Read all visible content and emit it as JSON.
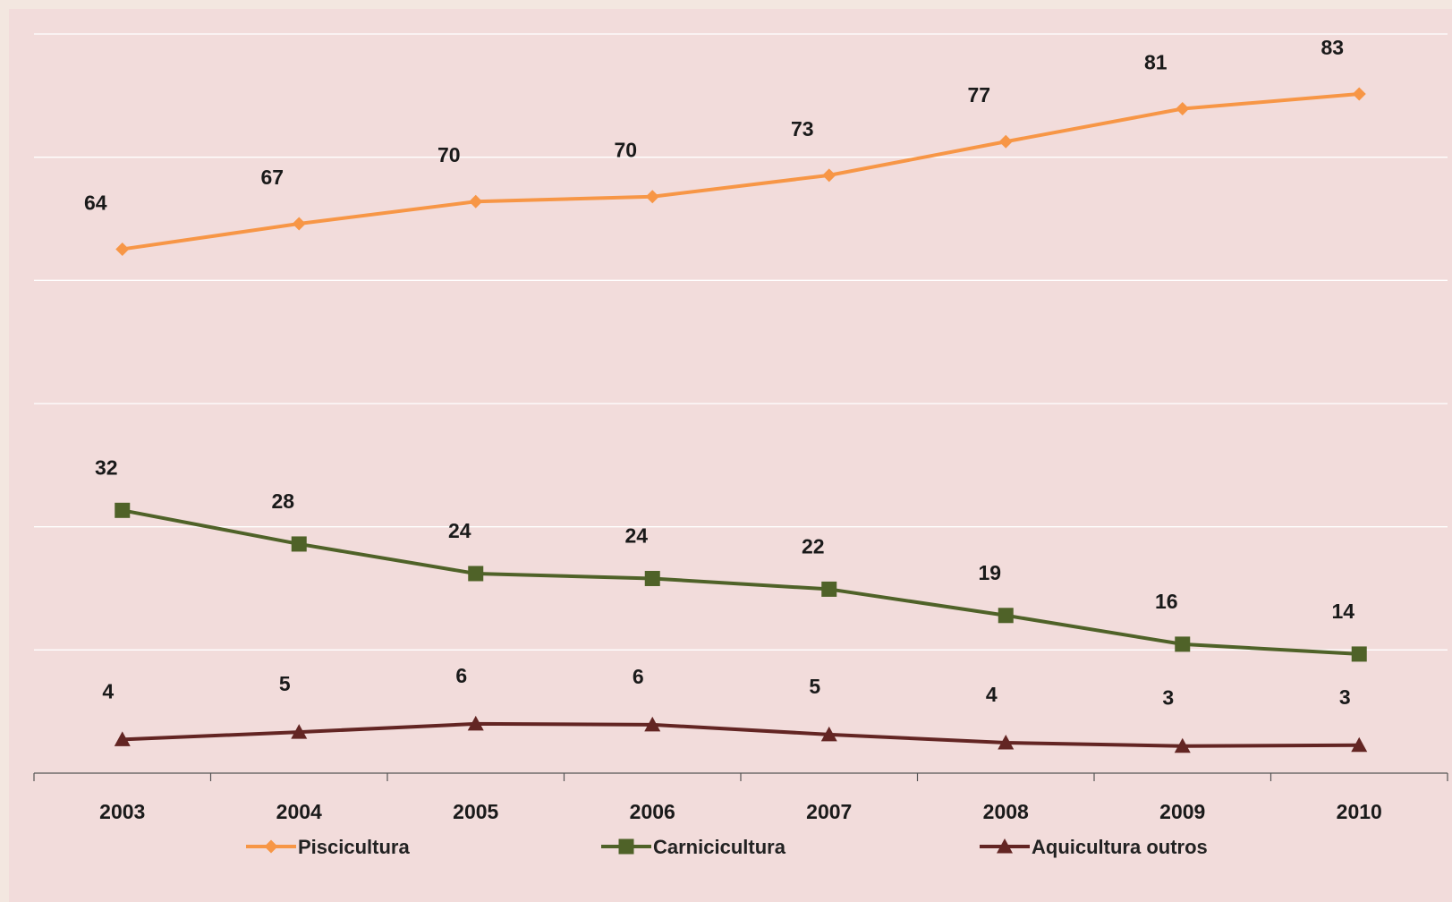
{
  "chart_data": {
    "type": "line",
    "title": "",
    "xlabel": "",
    "ylabel": "",
    "x": [
      "2003",
      "2004",
      "2005",
      "2006",
      "2007",
      "2008",
      "2009",
      "2010"
    ],
    "ylim": [
      0,
      90
    ],
    "grid": true,
    "legend_position": "bottom",
    "series": [
      {
        "name": "Piscicultura",
        "color": "#f79646",
        "marker": "diamond",
        "values": [
          64,
          67,
          70,
          70,
          73,
          77,
          81,
          83
        ]
      },
      {
        "name": "Carnicicultura",
        "color": "#4f6228",
        "marker": "square",
        "values": [
          32,
          28,
          24,
          24,
          22,
          19,
          16,
          14
        ]
      },
      {
        "name": "Aquicultura outros",
        "color": "#632523",
        "marker": "triangle",
        "values": [
          4,
          5,
          6,
          6,
          5,
          4,
          3,
          3
        ]
      }
    ],
    "plotted_values": [
      [
        63.8,
        66.9,
        69.6,
        70.2,
        72.8,
        76.9,
        80.9,
        82.7
      ],
      [
        32.0,
        27.9,
        24.3,
        23.7,
        22.4,
        19.2,
        15.7,
        14.5
      ],
      [
        4.1,
        5.0,
        6.0,
        5.9,
        4.7,
        3.7,
        3.3,
        3.4
      ]
    ]
  }
}
